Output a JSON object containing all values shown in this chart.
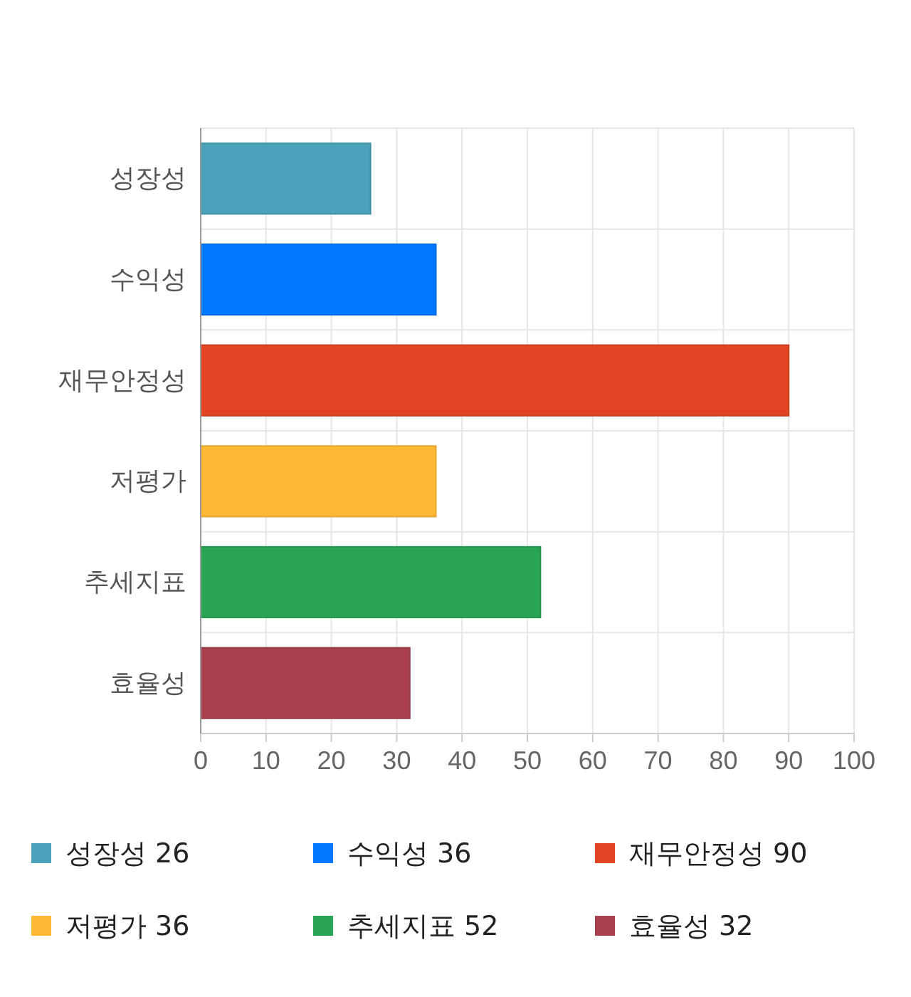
{
  "chart_data": {
    "type": "bar",
    "orientation": "horizontal",
    "stacked": true,
    "categories": [
      "성장성",
      "수익성",
      "재무안정성",
      "저평가",
      "추세지표",
      "효율성"
    ],
    "series": [
      {
        "name": "성장성 26",
        "color": "#4aa3ba",
        "values": [
          26,
          null,
          null,
          null,
          null,
          null
        ]
      },
      {
        "name": "수익성 36",
        "color": "#0077ff",
        "values": [
          null,
          36,
          null,
          null,
          null,
          null
        ]
      },
      {
        "name": "재무안정성 90",
        "color": "#e24424",
        "values": [
          null,
          null,
          90,
          null,
          null,
          null
        ]
      },
      {
        "name": "저평가 36",
        "color": "#ffb834",
        "values": [
          null,
          null,
          null,
          36,
          null,
          null
        ]
      },
      {
        "name": "추세지표 52",
        "color": "#28a553",
        "values": [
          null,
          null,
          null,
          null,
          52,
          null
        ]
      },
      {
        "name": "효율성 32",
        "color": "#a8404f",
        "values": [
          null,
          null,
          null,
          null,
          null,
          32
        ]
      }
    ],
    "xlim": [
      0,
      100
    ],
    "xticks": [
      0,
      10,
      20,
      30,
      40,
      50,
      60,
      70,
      80,
      90,
      100
    ],
    "grid": true,
    "legend": "bottom"
  }
}
